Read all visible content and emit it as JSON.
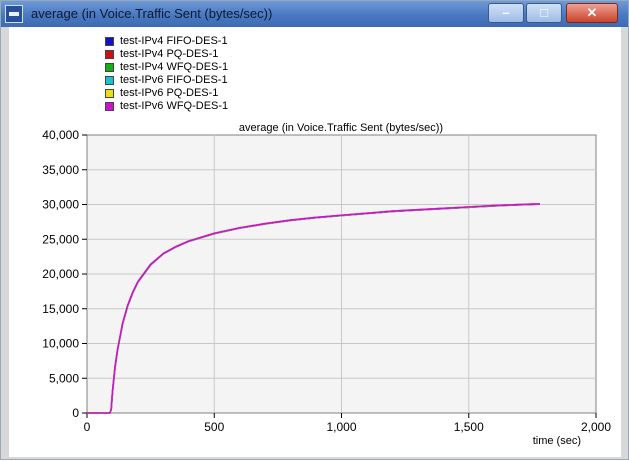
{
  "window": {
    "title": "average (in Voice.Traffic Sent (bytes/sec))",
    "buttons": {
      "minimize": "–",
      "maximize": "□",
      "close": "✕"
    }
  },
  "legend": {
    "items": [
      {
        "label": "test-IPv4 FIFO-DES-1",
        "color": "#1010d0"
      },
      {
        "label": "test-IPv4 PQ-DES-1",
        "color": "#d01010"
      },
      {
        "label": "test-IPv4 WFQ-DES-1",
        "color": "#10b010"
      },
      {
        "label": "test-IPv6 FIFO-DES-1",
        "color": "#10c8c8"
      },
      {
        "label": "test-IPv6 PQ-DES-1",
        "color": "#e8e010"
      },
      {
        "label": "test-IPv6 WFQ-DES-1",
        "color": "#d010d0"
      }
    ]
  },
  "chart_data": {
    "type": "line",
    "title": "average (in Voice.Traffic Sent (bytes/sec))",
    "xlabel": "time (sec)",
    "ylabel": "",
    "xlim": [
      0,
      2000
    ],
    "ylim": [
      0,
      40000
    ],
    "xticks": [
      0,
      500,
      1000,
      1500,
      2000
    ],
    "xtick_labels": [
      "0",
      "500",
      "1,000",
      "1,500",
      "2,000"
    ],
    "yticks": [
      0,
      5000,
      10000,
      15000,
      20000,
      25000,
      30000,
      35000,
      40000
    ],
    "ytick_labels": [
      "0",
      "5,000",
      "10,000",
      "15,000",
      "20,000",
      "25,000",
      "30,000",
      "35,000",
      "40,000"
    ],
    "grid": true,
    "legend_position": "top-left",
    "x": [
      0,
      90,
      95,
      100,
      110,
      120,
      140,
      160,
      180,
      200,
      250,
      300,
      350,
      400,
      500,
      600,
      700,
      800,
      900,
      1000,
      1100,
      1200,
      1300,
      1400,
      1500,
      1600,
      1700,
      1780
    ],
    "series": [
      {
        "name": "test-IPv4 FIFO-DES-1",
        "color": "#1010d0",
        "values": [
          0,
          0,
          500,
          3000,
          6500,
          9000,
          12800,
          15400,
          17300,
          18800,
          21300,
          22900,
          23900,
          24700,
          25800,
          26600,
          27200,
          27700,
          28100,
          28400,
          28700,
          29000,
          29200,
          29400,
          29600,
          29800,
          29950,
          30050
        ]
      },
      {
        "name": "test-IPv4 PQ-DES-1",
        "color": "#d01010",
        "values": [
          0,
          0,
          550,
          3100,
          6600,
          9100,
          12900,
          15500,
          17400,
          18900,
          21400,
          22950,
          23950,
          24750,
          25850,
          26650,
          27250,
          27750,
          28150,
          28450,
          28750,
          29050,
          29250,
          29450,
          29650,
          29850,
          30000,
          30100
        ]
      },
      {
        "name": "test-IPv4 WFQ-DES-1",
        "color": "#10b010",
        "values": [
          0,
          0,
          520,
          3050,
          6550,
          9050,
          12850,
          15450,
          17350,
          18850,
          21350,
          22920,
          23920,
          24720,
          25820,
          26620,
          27220,
          27720,
          28120,
          28420,
          28720,
          29020,
          29220,
          29420,
          29620,
          29820,
          29970,
          30070
        ]
      },
      {
        "name": "test-IPv6 FIFO-DES-1",
        "color": "#10c8c8",
        "values": [
          0,
          0,
          510,
          3020,
          6520,
          9020,
          12820,
          15420,
          17320,
          18820,
          21320,
          22910,
          23910,
          24710,
          25810,
          26610,
          27210,
          27710,
          28110,
          28410,
          28710,
          29010,
          29210,
          29410,
          29610,
          29810,
          29960,
          30060
        ]
      },
      {
        "name": "test-IPv6 PQ-DES-1",
        "color": "#e8e010",
        "values": [
          0,
          0,
          530,
          3070,
          6570,
          9070,
          12870,
          15470,
          17370,
          18870,
          21370,
          22930,
          23930,
          24730,
          25830,
          26630,
          27230,
          27730,
          28130,
          28430,
          28730,
          29030,
          29230,
          29430,
          29630,
          29830,
          29980,
          30080
        ]
      },
      {
        "name": "test-IPv6 WFQ-DES-1",
        "color": "#d010d0",
        "values": [
          0,
          0,
          540,
          3080,
          6580,
          9080,
          12880,
          15480,
          17380,
          18880,
          21380,
          22940,
          23940,
          24740,
          25840,
          26640,
          27240,
          27740,
          28140,
          28440,
          28740,
          29040,
          29240,
          29440,
          29640,
          29840,
          29990,
          30090
        ]
      }
    ]
  }
}
